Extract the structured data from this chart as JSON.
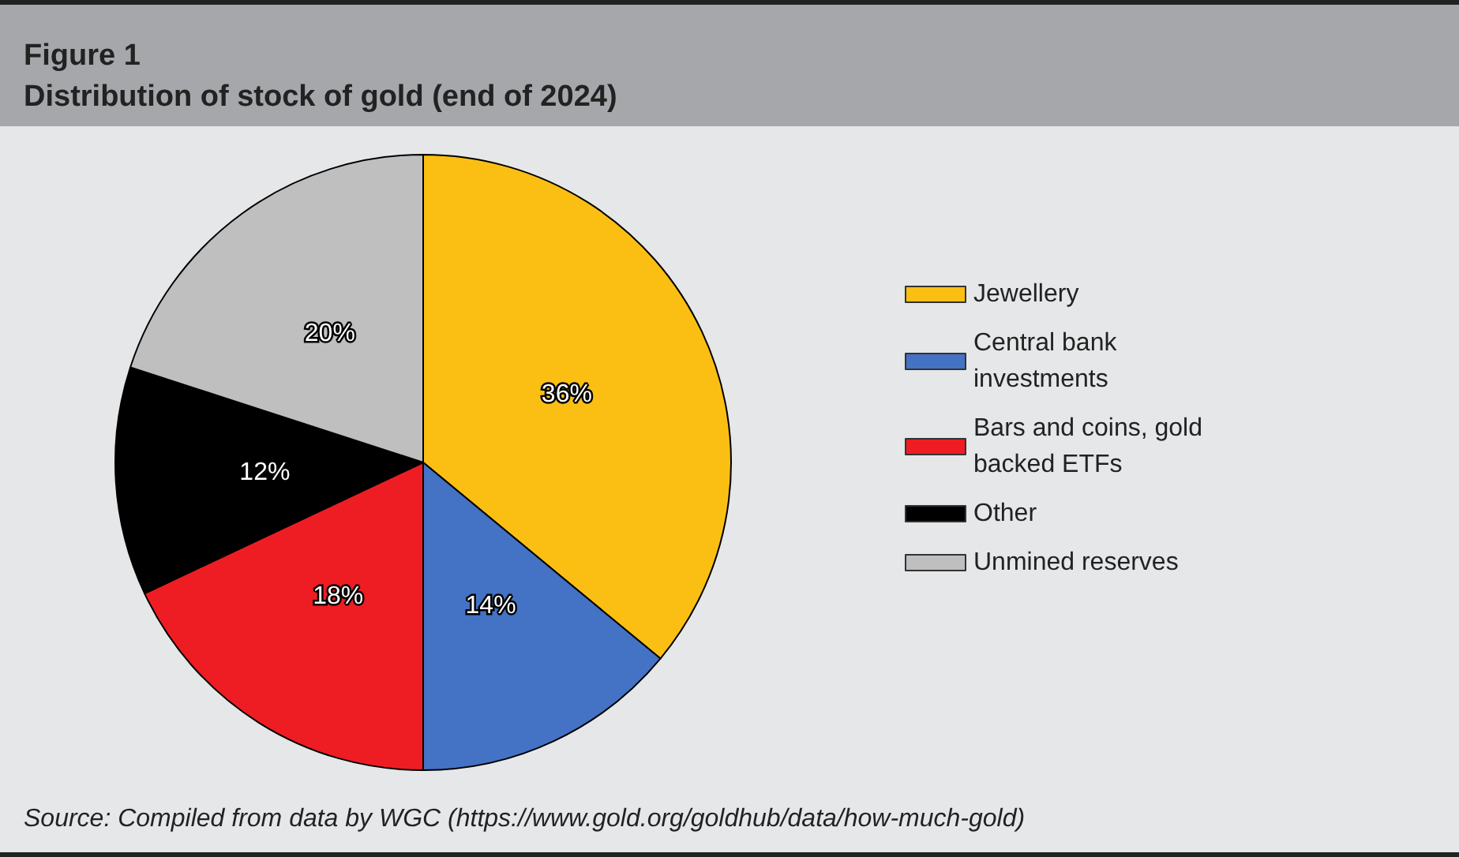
{
  "chart_data": {
    "type": "pie",
    "title": "Figure 1",
    "subtitle": "Distribution of stock of gold (end of 2024)",
    "categories": [
      "Jewellery",
      "Central bank investments",
      "Bars and coins, gold backed ETFs",
      "Other",
      "Unmined reserves"
    ],
    "values": [
      36,
      14,
      18,
      12,
      20
    ],
    "colors": [
      "#fbbf14",
      "#4472c4",
      "#ee1d23",
      "#000000",
      "#bfbfbf"
    ],
    "value_labels": [
      "36%",
      "14%",
      "18%",
      "12%",
      "20%"
    ],
    "legend": "right",
    "annotations": [
      "Source: Compiled from data by WGC (https://www.gold.org/goldhub/data/how-much-gold)"
    ]
  }
}
